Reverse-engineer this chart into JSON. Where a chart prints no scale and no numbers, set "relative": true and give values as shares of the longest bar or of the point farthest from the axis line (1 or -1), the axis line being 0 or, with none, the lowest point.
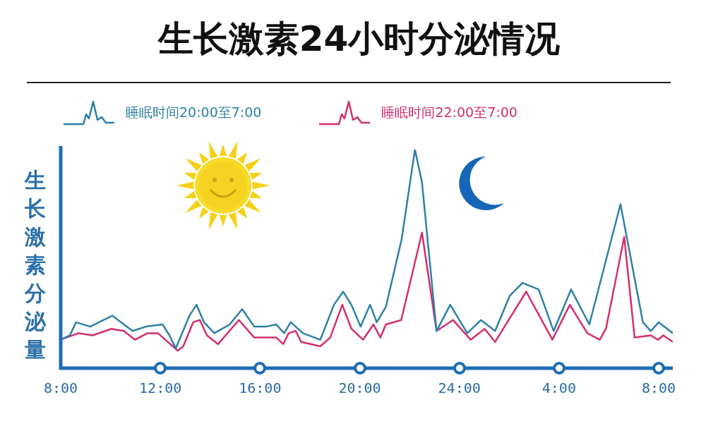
{
  "chart_data": {
    "type": "line",
    "title": "生长激素24小时分泌情况",
    "ylabel": "生长激素分泌量",
    "relative": true,
    "xlim": [
      "2000-01-01T08:00",
      "2000-01-02T08:34"
    ],
    "xticks": [
      {
        "value": "2000-01-01T08:00",
        "label": "8:00"
      },
      {
        "value": "2000-01-01T12:00",
        "label": "12:00"
      },
      {
        "value": "2000-01-01T16:00",
        "label": "16:00"
      },
      {
        "value": "2000-01-01T20:00",
        "label": "20:00"
      },
      {
        "value": "2000-01-02T00:00",
        "label": "24:00"
      },
      {
        "value": "2000-01-02T04:00",
        "label": "4:00"
      },
      {
        "value": "2000-01-02T08:00",
        "label": "8:00"
      }
    ],
    "tick_labels": "x",
    "grid": false,
    "legend": "top",
    "marker": "none",
    "line_style": "solid",
    "series": [
      {
        "name": "睡眠时间20:00至7:00",
        "color": "#2f80a6",
        "x": [
          "2000-01-01T08:00",
          "2000-01-01T08:22",
          "2000-01-01T08:37",
          "2000-01-01T09:11",
          "2000-01-01T10:04",
          "2000-01-01T10:53",
          "2000-01-01T11:25",
          "2000-01-01T12:05",
          "2000-01-01T12:22",
          "2000-01-01T12:37",
          "2000-01-01T13:10",
          "2000-01-01T13:27",
          "2000-01-01T13:45",
          "2000-01-01T14:10",
          "2000-01-01T14:47",
          "2000-01-01T15:17",
          "2000-01-01T15:46",
          "2000-01-01T16:14",
          "2000-01-01T16:39",
          "2000-01-01T16:58",
          "2000-01-01T17:14",
          "2000-01-01T17:43",
          "2000-01-01T18:25",
          "2000-01-01T18:58",
          "2000-01-01T19:20",
          "2000-01-01T19:40",
          "2000-01-01T20:02",
          "2000-01-01T20:25",
          "2000-01-01T20:41",
          "2000-01-01T21:03",
          "2000-01-01T21:41",
          "2000-01-01T22:13",
          "2000-01-01T22:30",
          "2000-01-01T23:05",
          "2000-01-01T23:38",
          "2000-01-02T00:19",
          "2000-01-02T00:52",
          "2000-01-02T01:26",
          "2000-01-02T02:01",
          "2000-01-02T02:32",
          "2000-01-02T03:11",
          "2000-01-02T03:47",
          "2000-01-02T04:29",
          "2000-01-02T05:13",
          "2000-01-02T06:28",
          "2000-01-02T07:22",
          "2000-01-02T07:41",
          "2000-01-02T08:00",
          "2000-01-02T08:34"
        ],
        "values": [
          0.13,
          0.15,
          0.21,
          0.19,
          0.24,
          0.17,
          0.19,
          0.2,
          0.15,
          0.09,
          0.24,
          0.29,
          0.21,
          0.16,
          0.2,
          0.27,
          0.19,
          0.19,
          0.2,
          0.16,
          0.21,
          0.16,
          0.13,
          0.29,
          0.35,
          0.29,
          0.19,
          0.29,
          0.21,
          0.28,
          0.59,
          1,
          0.85,
          0.17,
          0.29,
          0.16,
          0.22,
          0.17,
          0.33,
          0.39,
          0.36,
          0.17,
          0.36,
          0.2,
          0.75,
          0.21,
          0.17,
          0.21,
          0.16
        ]
      },
      {
        "name": "睡眠时间22:00至7:00",
        "color": "#d42f6e",
        "x": [
          "2000-01-01T08:00",
          "2000-01-01T08:43",
          "2000-01-01T09:17",
          "2000-01-01T10:02",
          "2000-01-01T10:32",
          "2000-01-01T10:59",
          "2000-01-01T11:29",
          "2000-01-01T11:54",
          "2000-01-01T12:42",
          "2000-01-01T12:55",
          "2000-01-01T13:19",
          "2000-01-01T13:35",
          "2000-01-01T13:52",
          "2000-01-01T14:19",
          "2000-01-01T15:09",
          "2000-01-01T15:46",
          "2000-01-01T16:39",
          "2000-01-01T16:56",
          "2000-01-01T17:09",
          "2000-01-01T17:26",
          "2000-01-01T17:39",
          "2000-01-01T18:25",
          "2000-01-01T18:49",
          "2000-01-01T19:18",
          "2000-01-01T19:40",
          "2000-01-01T20:08",
          "2000-01-01T20:33",
          "2000-01-01T20:50",
          "2000-01-01T21:03",
          "2000-01-01T21:40",
          "2000-01-01T22:30",
          "2000-01-01T23:05",
          "2000-01-01T23:45",
          "2000-01-02T00:27",
          "2000-01-02T01:01",
          "2000-01-02T01:26",
          "2000-01-02T01:39",
          "2000-01-02T02:41",
          "2000-01-02T03:44",
          "2000-01-02T04:26",
          "2000-01-02T05:08",
          "2000-01-02T05:38",
          "2000-01-02T05:53",
          "2000-01-02T06:37",
          "2000-01-02T07:02",
          "2000-01-02T07:41",
          "2000-01-02T07:58",
          "2000-01-02T08:11",
          "2000-01-02T08:34"
        ],
        "values": [
          0.13,
          0.16,
          0.15,
          0.18,
          0.17,
          0.13,
          0.16,
          0.16,
          0.08,
          0.1,
          0.21,
          0.22,
          0.15,
          0.11,
          0.22,
          0.14,
          0.14,
          0.11,
          0.16,
          0.17,
          0.12,
          0.1,
          0.14,
          0.29,
          0.18,
          0.13,
          0.2,
          0.14,
          0.2,
          0.22,
          0.62,
          0.17,
          0.22,
          0.13,
          0.18,
          0.12,
          0.16,
          0.35,
          0.13,
          0.29,
          0.16,
          0.13,
          0.18,
          0.6,
          0.14,
          0.15,
          0.13,
          0.15,
          0.12
        ]
      }
    ]
  }
}
